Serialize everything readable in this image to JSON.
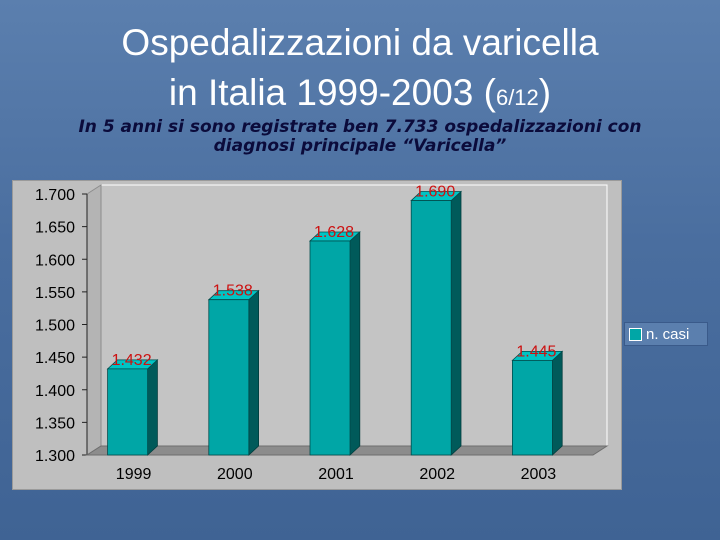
{
  "title_line1": "Ospedalizzazioni da varicella",
  "title_line2_main": "in Italia 1999-2003 (",
  "title_fraction": "6/12",
  "title_close": ")",
  "subtitle_line1": "In 5 anni si sono registrate ben 7.733 ospedalizzazioni con",
  "subtitle_line2": "diagnosi principale “Varicella”",
  "colors": {
    "bar_front": "#00a6a6",
    "bar_side": "#005a5a",
    "bar_top": "#00c4c4",
    "data_label": "#cc1111",
    "floor": "#8c8c8c"
  },
  "chart_data": {
    "type": "bar",
    "categories": [
      "1999",
      "2000",
      "2001",
      "2002",
      "2003"
    ],
    "series": [
      {
        "name": "n. casi",
        "values": [
          1432,
          1538,
          1628,
          1690,
          1445
        ]
      }
    ],
    "data_labels": [
      "1.432",
      "1.538",
      "1.628",
      "1.690",
      "1.445"
    ],
    "ylim": [
      1300,
      1700
    ],
    "yticks": [
      1300,
      1350,
      1400,
      1450,
      1500,
      1550,
      1600,
      1650,
      1700
    ],
    "ytick_labels": [
      "1.300",
      "1.350",
      "1.400",
      "1.450",
      "1.500",
      "1.550",
      "1.600",
      "1.650",
      "1.700"
    ],
    "grid": false,
    "legend_position": "right",
    "three_d": true
  }
}
